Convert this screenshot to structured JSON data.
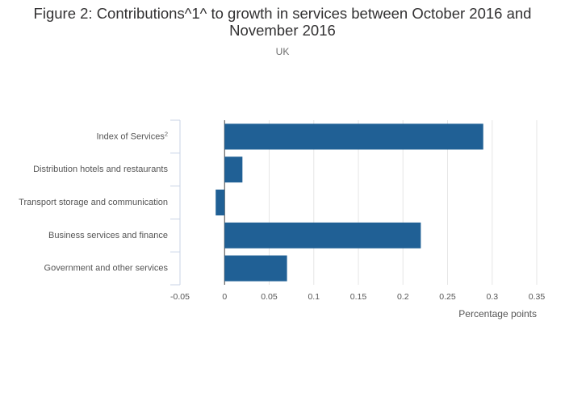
{
  "chart_data": {
    "type": "bar",
    "orientation": "horizontal",
    "title": "Figure 2: Contributions^1^ to growth in services between October 2016 and November 2016",
    "subtitle": "UK",
    "xlabel": "Percentage points",
    "ylabel": "",
    "xlim": [
      -0.05,
      0.35
    ],
    "xticks": [
      "-0.05",
      "0",
      "0.05",
      "0.1",
      "0.15",
      "0.2",
      "0.25",
      "0.3",
      "0.35"
    ],
    "xtick_values": [
      -0.05,
      0,
      0.05,
      0.1,
      0.15,
      0.2,
      0.25,
      0.3,
      0.35
    ],
    "grid": true,
    "categories": [
      "Index of Services",
      "Distribution hotels and restaurants",
      "Transport storage and communication",
      "Business services and finance",
      "Government and other services"
    ],
    "category_superscripts": [
      "2",
      "",
      "",
      "",
      ""
    ],
    "values": [
      0.29,
      0.02,
      -0.01,
      0.22,
      0.07
    ],
    "color": "#206095"
  }
}
